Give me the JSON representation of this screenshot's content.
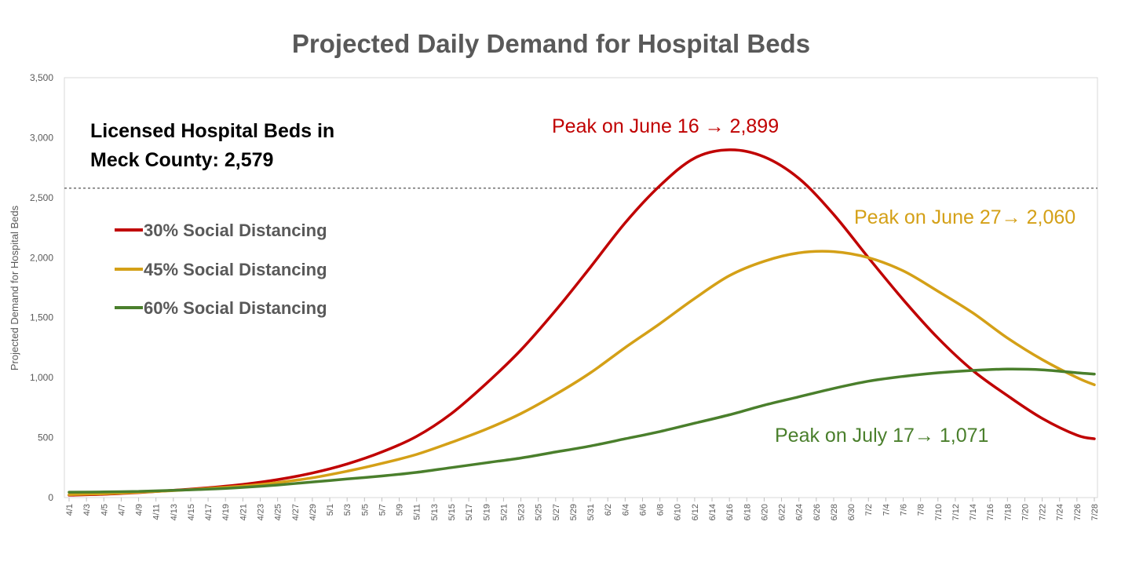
{
  "chart_data": {
    "type": "line",
    "title": "Projected Daily Demand for Hospital Beds",
    "ylabel": "Projected Demand for Hospital Beds",
    "xlabel": "",
    "ylim": [
      0,
      3500
    ],
    "yticks": [
      0,
      500,
      1000,
      1500,
      2000,
      2500,
      3000,
      3500
    ],
    "ytick_labels": [
      "0",
      "500",
      "1,000",
      "1,500",
      "2,000",
      "2,500",
      "3,000",
      "3,500"
    ],
    "x_start": "4/1",
    "x_end": "7/28",
    "x_tick_labels": [
      "4/1",
      "4/3",
      "4/5",
      "4/7",
      "4/9",
      "4/11",
      "4/13",
      "4/15",
      "4/17",
      "4/19",
      "4/21",
      "4/23",
      "4/25",
      "4/27",
      "4/29",
      "5/1",
      "5/3",
      "5/5",
      "5/7",
      "5/9",
      "5/11",
      "5/13",
      "5/15",
      "5/17",
      "5/19",
      "5/21",
      "5/23",
      "5/25",
      "5/27",
      "5/29",
      "5/31",
      "6/2",
      "6/4",
      "6/6",
      "6/8",
      "6/10",
      "6/12",
      "6/14",
      "6/16",
      "6/18",
      "6/20",
      "6/22",
      "6/24",
      "6/26",
      "6/28",
      "6/30",
      "7/2",
      "7/4",
      "7/6",
      "7/8",
      "7/10",
      "7/12",
      "7/14",
      "7/16",
      "7/18",
      "7/20",
      "7/22",
      "7/24",
      "7/26",
      "7/28"
    ],
    "grid": false,
    "legend_position": "left",
    "x": [
      "4/1",
      "4/5",
      "4/9",
      "4/13",
      "4/17",
      "4/21",
      "4/25",
      "4/29",
      "5/3",
      "5/7",
      "5/11",
      "5/15",
      "5/19",
      "5/23",
      "5/27",
      "5/31",
      "6/4",
      "6/8",
      "6/12",
      "6/16",
      "6/20",
      "6/24",
      "6/28",
      "7/2",
      "7/6",
      "7/10",
      "7/14",
      "7/18",
      "7/22",
      "7/26",
      "7/28"
    ],
    "series": [
      {
        "name": "30% Social Distancing",
        "color": "#c00000",
        "values": [
          20,
          28,
          42,
          60,
          82,
          110,
          150,
          205,
          280,
          380,
          510,
          700,
          950,
          1230,
          1560,
          1920,
          2290,
          2600,
          2830,
          2899,
          2840,
          2660,
          2360,
          2000,
          1650,
          1330,
          1060,
          850,
          660,
          520,
          490
        ]
      },
      {
        "name": "45% Social Distancing",
        "color": "#d4a017",
        "values": [
          25,
          32,
          44,
          58,
          76,
          96,
          125,
          165,
          220,
          285,
          360,
          460,
          570,
          700,
          860,
          1040,
          1250,
          1450,
          1660,
          1850,
          1970,
          2040,
          2050,
          2000,
          1890,
          1720,
          1540,
          1330,
          1150,
          1000,
          940
        ]
      },
      {
        "name": "60% Social Distancing",
        "color": "#4a7f2c",
        "values": [
          45,
          47,
          52,
          60,
          70,
          85,
          105,
          130,
          155,
          180,
          210,
          250,
          290,
          330,
          380,
          430,
          490,
          550,
          620,
          690,
          770,
          840,
          910,
          970,
          1010,
          1040,
          1060,
          1071,
          1065,
          1040,
          1030
        ]
      }
    ],
    "reference_line": {
      "value": 2579
    },
    "annotations": {
      "reference_label_line1": "Licensed Hospital Beds in",
      "reference_label_line2": "Meck County: 2,579",
      "peak_30": "Peak on June 16 → 2,899",
      "peak_45": "Peak on June 27→ 2,060",
      "peak_60": "Peak on July 17→ 1,071"
    }
  }
}
